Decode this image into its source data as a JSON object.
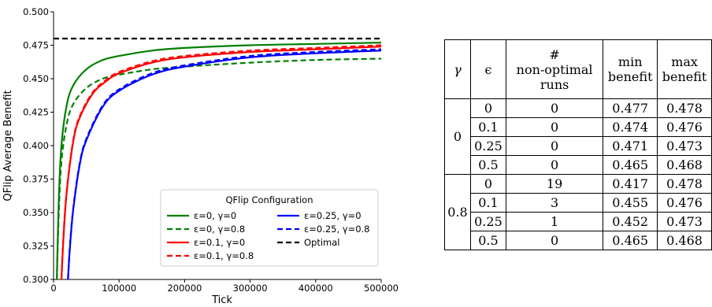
{
  "chart_data": {
    "type": "line",
    "xlabel": "Tick",
    "ylabel": "QFlip Average Benefit",
    "xlim": [
      0,
      500000
    ],
    "ylim": [
      0.3,
      0.5
    ],
    "x_ticks": [
      0,
      100000,
      200000,
      300000,
      400000,
      500000
    ],
    "y_ticks": [
      "0.300",
      "0.325",
      "0.350",
      "0.375",
      "0.400",
      "0.425",
      "0.450",
      "0.475",
      "0.500"
    ],
    "grid": false,
    "legend_title": "QFlip Configuration",
    "legend_position": "lower-right",
    "series": [
      {
        "name": "ε=0, γ=0",
        "color": "#008000",
        "dash": "solid",
        "x": [
          5000,
          8000,
          12000,
          20000,
          30000,
          50000,
          75000,
          100000,
          150000,
          200000,
          300000,
          400000,
          500000
        ],
        "y": [
          0.3,
          0.36,
          0.4,
          0.43,
          0.445,
          0.457,
          0.464,
          0.467,
          0.471,
          0.473,
          0.475,
          0.476,
          0.477
        ]
      },
      {
        "name": "ε=0, γ=0.8",
        "color": "#008000",
        "dash": "dashed",
        "x": [
          5000,
          8000,
          12000,
          20000,
          30000,
          50000,
          75000,
          100000,
          150000,
          200000,
          300000,
          400000,
          500000
        ],
        "y": [
          0.3,
          0.35,
          0.388,
          0.416,
          0.431,
          0.443,
          0.45,
          0.453,
          0.457,
          0.459,
          0.462,
          0.464,
          0.465
        ]
      },
      {
        "name": "ε=0.1, γ=0",
        "color": "#ff0000",
        "dash": "solid",
        "x": [
          12000,
          15000,
          20000,
          30000,
          40000,
          60000,
          80000,
          100000,
          150000,
          200000,
          300000,
          400000,
          500000
        ],
        "y": [
          0.3,
          0.33,
          0.365,
          0.403,
          0.421,
          0.439,
          0.448,
          0.454,
          0.462,
          0.466,
          0.47,
          0.472,
          0.474
        ]
      },
      {
        "name": "ε=0.1, γ=0.8",
        "color": "#ff0000",
        "dash": "dashed",
        "x": [
          12000,
          15000,
          20000,
          30000,
          40000,
          60000,
          80000,
          100000,
          150000,
          200000,
          300000,
          400000,
          500000
        ],
        "y": [
          0.3,
          0.331,
          0.366,
          0.404,
          0.422,
          0.44,
          0.449,
          0.455,
          0.463,
          0.467,
          0.471,
          0.473,
          0.475
        ]
      },
      {
        "name": "ε=0.25, γ=0",
        "color": "#0000ff",
        "dash": "solid",
        "x": [
          22000,
          25000,
          30000,
          40000,
          50000,
          75000,
          100000,
          150000,
          200000,
          300000,
          400000,
          500000
        ],
        "y": [
          0.3,
          0.324,
          0.352,
          0.386,
          0.404,
          0.429,
          0.441,
          0.453,
          0.459,
          0.466,
          0.469,
          0.471
        ]
      },
      {
        "name": "ε=0.25, γ=0.8",
        "color": "#0000ff",
        "dash": "dashed",
        "x": [
          22000,
          25000,
          30000,
          40000,
          50000,
          75000,
          100000,
          150000,
          200000,
          300000,
          400000,
          500000
        ],
        "y": [
          0.3,
          0.325,
          0.353,
          0.387,
          0.405,
          0.43,
          0.442,
          0.454,
          0.46,
          0.467,
          0.47,
          0.472
        ]
      },
      {
        "name": "Optimal",
        "color": "#000000",
        "dash": "dashed",
        "x": [
          0,
          500000
        ],
        "y": [
          0.48,
          0.48
        ]
      }
    ]
  },
  "table": {
    "headers": [
      "γ",
      "ϵ",
      "#",
      "non-optimal",
      "runs",
      "min",
      "benefit",
      "max",
      "benefit"
    ],
    "groups": [
      {
        "gamma": "0",
        "rows": [
          {
            "eps": "0",
            "n": "0",
            "min": "0.477",
            "max": "0.478"
          },
          {
            "eps": "0.1",
            "n": "0",
            "min": "0.474",
            "max": "0.476"
          },
          {
            "eps": "0.25",
            "n": "0",
            "min": "0.471",
            "max": "0.473"
          },
          {
            "eps": "0.5",
            "n": "0",
            "min": "0.465",
            "max": "0.468"
          }
        ]
      },
      {
        "gamma": "0.8",
        "rows": [
          {
            "eps": "0",
            "n": "19",
            "min": "0.417",
            "max": "0.478"
          },
          {
            "eps": "0.1",
            "n": "3",
            "min": "0.455",
            "max": "0.476"
          },
          {
            "eps": "0.25",
            "n": "1",
            "min": "0.452",
            "max": "0.473"
          },
          {
            "eps": "0.5",
            "n": "0",
            "min": "0.465",
            "max": "0.468"
          }
        ]
      }
    ]
  }
}
